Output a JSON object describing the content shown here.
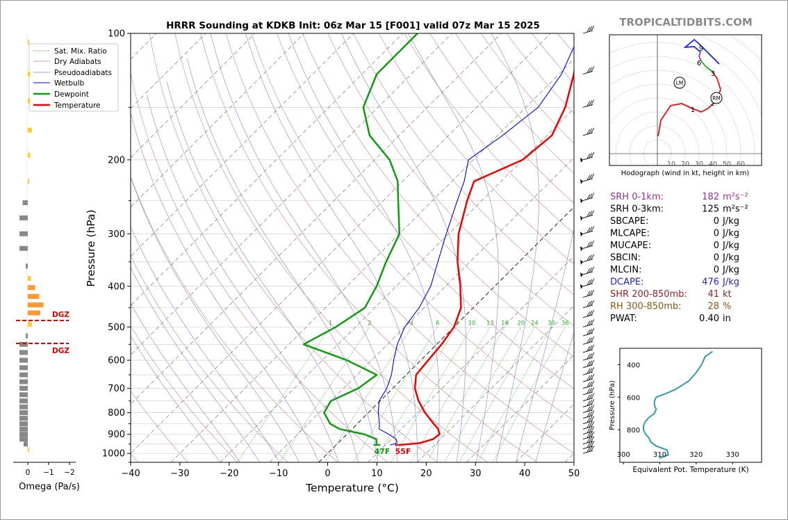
{
  "title": "HRRR Sounding at KDKB Init: 06z Mar 15 [F001] valid 07z Mar 15 2025",
  "site": "TROPICALTIDBITS.COM",
  "colors": {
    "temperature": "#ee0000",
    "dewpoint": "#119911",
    "wetbulb": "#0000ee",
    "dry": "#d08080",
    "pseudo": "#8080d0",
    "mix": "#33aa33",
    "hodo_red": "#ee1111",
    "hodo_green": "#22aa22",
    "hodo_blue": "#1122ee",
    "hodo_purple": "#aa33cc",
    "theta": "#3399aa",
    "omega_grey": "#888888",
    "omega_yellow": "#ffcc33",
    "omega_orange": "#ff9933",
    "dgz": "#dd0000"
  },
  "chart_data": [
    {
      "type": "line",
      "id": "skewt",
      "xlabel": "Temperature (°C)",
      "ylabel": "Pressure (hPa)",
      "xlim": [
        -40,
        50
      ],
      "ylim": [
        1050,
        100
      ],
      "y_scale": "log",
      "x_ticks": [
        "−40",
        "−30",
        "−20",
        "−10",
        "0",
        "10",
        "20",
        "30",
        "40",
        "50"
      ],
      "y_ticks": [
        "100",
        "200",
        "300",
        "400",
        "500",
        "600",
        "700",
        "800",
        "900",
        "1000"
      ],
      "grid": true,
      "legend_position": "top-left",
      "legend": [
        "Sat. Mix. Ratio",
        "Dry Adiabats",
        "Pseudoadiabats",
        "Wetbulb",
        "Dewpoint",
        "Temperature"
      ],
      "mixing_ratio_labels": [
        "1",
        "2",
        "4",
        "6",
        "8",
        "10",
        "13",
        "16",
        "20",
        "24",
        "30",
        "36"
      ],
      "series": [
        {
          "name": "Temperature",
          "p": [
            955,
            945,
            925,
            900,
            875,
            850,
            800,
            750,
            700,
            650,
            600,
            550,
            500,
            450,
            400,
            350,
            300,
            250,
            225,
            200,
            175,
            150,
            125,
            100
          ],
          "t": [
            12.8,
            16.6,
            18.5,
            18.8,
            17.5,
            15.5,
            11.5,
            7.8,
            4.5,
            2.0,
            1.5,
            1.0,
            0.0,
            -2.5,
            -7,
            -12.5,
            -18,
            -23,
            -25.5,
            -20,
            -19,
            -22,
            -27,
            -34
          ]
        },
        {
          "name": "Dewpoint",
          "p": [
            955,
            945,
            925,
            900,
            875,
            850,
            800,
            750,
            700,
            650,
            600,
            550,
            500,
            450,
            400,
            350,
            300,
            250,
            225,
            200,
            175,
            150,
            125,
            100
          ],
          "t": [
            8.3,
            7.8,
            7.0,
            3.5,
            -2.5,
            -5.5,
            -9,
            -10,
            -7,
            -6,
            -15,
            -27,
            -24,
            -22,
            -24,
            -27,
            -30,
            -37,
            -41,
            -47,
            -56,
            -63,
            -67,
            -67
          ]
        },
        {
          "name": "Wetbulb",
          "p": [
            955,
            945,
            925,
            900,
            875,
            850,
            800,
            750,
            700,
            650,
            600,
            550,
            500,
            450,
            400,
            350,
            300,
            250,
            225,
            200,
            175,
            150,
            125,
            100
          ],
          "t": [
            11,
            12,
            11,
            8.5,
            5.5,
            4.5,
            2,
            -0.2,
            -1.2,
            -3,
            -5.5,
            -8,
            -10,
            -11,
            -13,
            -16.5,
            -20.5,
            -25,
            -27.5,
            -31,
            -29,
            -27.5,
            -29.5,
            -34
          ]
        }
      ],
      "annotations": [
        "47F",
        "55F"
      ]
    },
    {
      "type": "line",
      "id": "hodograph",
      "title": "Hodograph (wind in kt, height in km)",
      "ring_labels": [
        "10",
        "20",
        "30",
        "40",
        "50",
        "60"
      ],
      "height_labels": [
        "1",
        "2",
        "3",
        "6",
        "9"
      ],
      "markers": [
        "LM",
        "RM"
      ]
    },
    {
      "type": "line",
      "id": "theta_e",
      "xlabel": "Equivalent Pot. Temperature (K)",
      "ylabel": "Pressure (hPa)",
      "xlim": [
        299,
        338
      ],
      "ylim": [
        1000,
        300
      ],
      "x_ticks": [
        "300",
        "310",
        "320",
        "330"
      ],
      "y_ticks": [
        "400",
        "600",
        "800"
      ],
      "series": [
        {
          "name": "",
          "p": [
            975,
            955,
            925,
            900,
            875,
            850,
            825,
            800,
            775,
            750,
            725,
            700,
            675,
            650,
            625,
            600,
            575,
            550,
            500,
            450,
            400,
            350,
            320
          ],
          "theta": [
            309.8,
            312.3,
            312,
            309,
            307.5,
            307,
            306,
            305.5,
            305.5,
            306,
            307,
            308.5,
            309,
            308.5,
            308.5,
            309,
            312,
            314.5,
            318,
            320,
            321.5,
            322.5,
            324.5
          ]
        }
      ]
    },
    {
      "type": "bar",
      "id": "omega",
      "xlabel": "Omega (Pa/s)",
      "xlim": [
        0.1,
        -2.0
      ],
      "x_ticks": [
        "0",
        "−1",
        "−2"
      ],
      "dgz_label": "DGZ",
      "bars": [
        {
          "p": 105,
          "v": -0.05
        },
        {
          "p": 125,
          "v": -0.1
        },
        {
          "p": 145,
          "v": -0.1
        },
        {
          "p": 170,
          "v": -0.2
        },
        {
          "p": 195,
          "v": -0.1
        },
        {
          "p": 225,
          "v": -0.05
        },
        {
          "p": 253,
          "v": 0.25
        },
        {
          "p": 275,
          "v": 0.4
        },
        {
          "p": 300,
          "v": 0.4
        },
        {
          "p": 325,
          "v": 0.4
        },
        {
          "p": 358,
          "v": 0.1
        },
        {
          "p": 383,
          "v": -0.15
        },
        {
          "p": 403,
          "v": -0.35
        },
        {
          "p": 423,
          "v": -0.55
        },
        {
          "p": 443,
          "v": -0.75
        },
        {
          "p": 463,
          "v": -0.6
        },
        {
          "p": 493,
          "v": -0.2
        },
        {
          "p": 525,
          "v": 0.1
        },
        {
          "p": 550,
          "v": 0.4
        },
        {
          "p": 575,
          "v": 0.4
        },
        {
          "p": 600,
          "v": 0.4
        },
        {
          "p": 625,
          "v": 0.4
        },
        {
          "p": 650,
          "v": 0.4
        },
        {
          "p": 675,
          "v": 0.4
        },
        {
          "p": 700,
          "v": 0.4
        },
        {
          "p": 725,
          "v": 0.4
        },
        {
          "p": 750,
          "v": 0.4
        },
        {
          "p": 775,
          "v": 0.4
        },
        {
          "p": 800,
          "v": 0.4
        },
        {
          "p": 825,
          "v": 0.4
        },
        {
          "p": 850,
          "v": 0.4
        },
        {
          "p": 875,
          "v": 0.4
        },
        {
          "p": 900,
          "v": 0.4
        },
        {
          "p": 925,
          "v": 0.4
        },
        {
          "p": 950,
          "v": 0.2
        },
        {
          "p": 980,
          "v": -0.05
        }
      ]
    }
  ],
  "indices": [
    {
      "label": "SRH 0-1km:",
      "value": "182",
      "unit": "m²s⁻²",
      "color": "#993399"
    },
    {
      "label": "SRH 0-3km:",
      "value": "125",
      "unit": "m²s⁻²",
      "color": "#000000"
    },
    {
      "label": "SBCAPE:",
      "value": "0",
      "unit": "J/kg",
      "color": "#000000"
    },
    {
      "label": "MLCAPE:",
      "value": "0",
      "unit": "J/kg",
      "color": "#000000"
    },
    {
      "label": "MUCAPE:",
      "value": "0",
      "unit": "J/kg",
      "color": "#000000"
    },
    {
      "label": "SBCIN:",
      "value": "0",
      "unit": "J/kg",
      "color": "#000000"
    },
    {
      "label": "MLCIN:",
      "value": "0",
      "unit": "J/kg",
      "color": "#000000"
    },
    {
      "label": "DCAPE:",
      "value": "476",
      "unit": "J/kg",
      "color": "#2222cc"
    },
    {
      "label": "SHR 200-850mb:",
      "value": "41",
      "unit": "kt",
      "color": "#992222"
    },
    {
      "label": "RH 300-850mb:",
      "value": "28",
      "unit": "%",
      "color": "#885511"
    },
    {
      "label": "PWAT:",
      "value": "0.40",
      "unit": "in",
      "color": "#000000"
    }
  ]
}
